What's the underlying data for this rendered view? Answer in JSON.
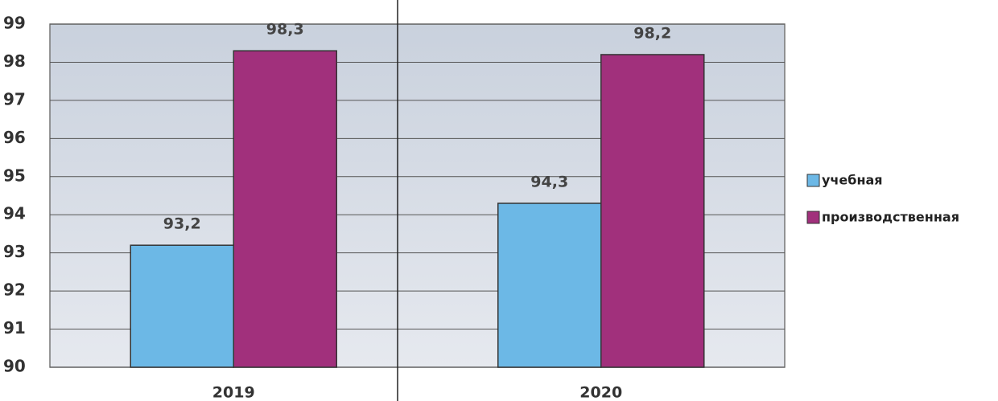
{
  "chart_data": {
    "type": "bar",
    "categories": [
      "2019",
      "2020"
    ],
    "series": [
      {
        "name": "учебная",
        "color": "#6cb8e6",
        "values": [
          93.2,
          94.3
        ],
        "value_labels": [
          "93,2",
          "94,3"
        ]
      },
      {
        "name": "производственная",
        "color": "#a1307c",
        "values": [
          98.3,
          98.2
        ],
        "value_labels": [
          "98,3",
          "98,2"
        ]
      }
    ],
    "ylim": [
      90,
      99
    ],
    "yticks": [
      90,
      91,
      92,
      93,
      94,
      95,
      96,
      97,
      98,
      99
    ],
    "grid": true,
    "legend": "right"
  }
}
